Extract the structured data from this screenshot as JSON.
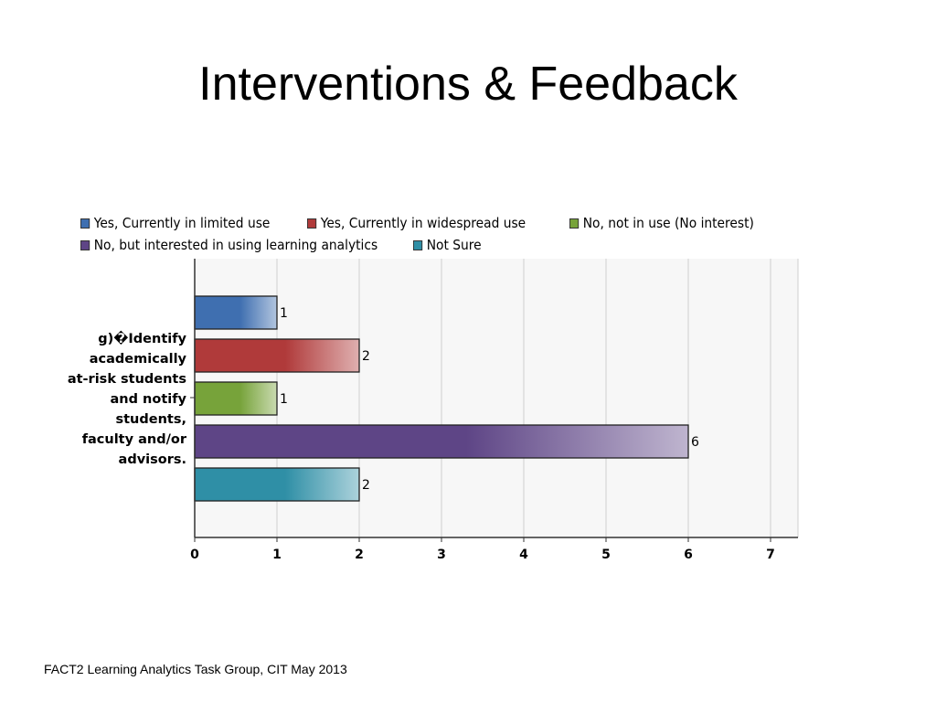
{
  "slide": {
    "title": "Interventions & Feedback",
    "footer": "FACT2 Learning Analytics Task Group, CIT May 2013"
  },
  "chart_data": {
    "type": "bar",
    "orientation": "horizontal",
    "title": "",
    "xlabel": "",
    "ylabel": "",
    "categories": [
      "g)�Identify academically at-risk students and notify students, faculty and/or advisors."
    ],
    "series": [
      {
        "name": "Yes, Currently in limited use",
        "values": [
          1
        ],
        "color": "#3f6fb0"
      },
      {
        "name": "Yes, Currently in widespread use",
        "values": [
          2
        ],
        "color": "#b03a3a"
      },
      {
        "name": "No, not in use (No interest)",
        "values": [
          1
        ],
        "color": "#77a33a"
      },
      {
        "name": "No, but interested in using learning analytics",
        "values": [
          6
        ],
        "color": "#5e4586"
      },
      {
        "name": "Not Sure",
        "values": [
          2
        ],
        "color": "#2f8fa6"
      }
    ],
    "xlim": [
      0,
      7
    ],
    "x_ticks": [
      "0",
      "1",
      "2",
      "3",
      "4",
      "5",
      "6",
      "7"
    ],
    "grid": true,
    "legend_position": "top",
    "data_labels": [
      "1",
      "2",
      "1",
      "6",
      "2"
    ]
  }
}
